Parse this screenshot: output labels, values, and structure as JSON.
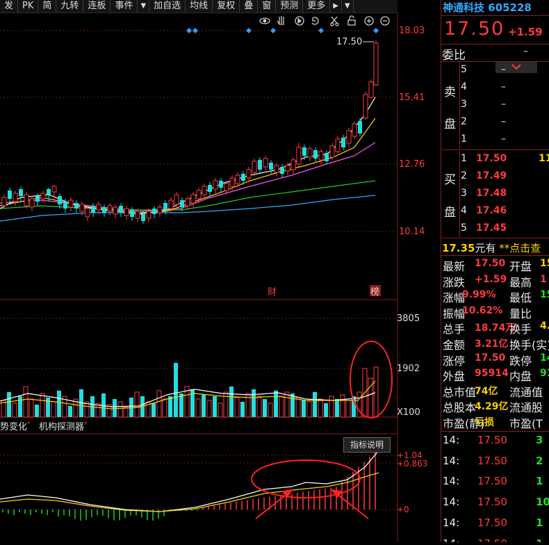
{
  "toolbar": {
    "items": [
      "发",
      "PK",
      "简",
      "九转",
      "连板",
      "事件",
      "▼",
      "加自选",
      "均线",
      "复权",
      "叠",
      "窗",
      "预测",
      "更多",
      "▶",
      "▼"
    ]
  },
  "chart": {
    "price_axis": [
      "18.03",
      "15.41",
      "12.76",
      "10.14"
    ],
    "last_price_label": "17.50",
    "markers": {
      "cai": "财",
      "bang": "榜"
    },
    "volume_axis": [
      "3805",
      "1902",
      "X100"
    ],
    "macd_axis": [
      "+1.04",
      "+0.863",
      "+0"
    ],
    "indicator_button": "指标说明",
    "tabs": [
      {
        "label": "势变化",
        "mark": "*"
      },
      {
        "label": "机构探测器",
        "mark": "*"
      }
    ],
    "colors": {
      "up": "#ff3b3b",
      "down": "#22dddd",
      "ma5": "#ffffff",
      "ma10": "#ffd000",
      "ma20": "#ff55ff",
      "ma30": "#22cc22",
      "ma60": "#33aaff"
    }
  },
  "stock": {
    "name": "神通科技",
    "code": "605228",
    "price": "17.50",
    "change": "+1.59"
  },
  "order_book": {
    "weibi_label": "委比",
    "weibi_value": "–",
    "sell_label": [
      "卖",
      "盘"
    ],
    "buy_label": [
      "买",
      "盘"
    ],
    "sell": [
      {
        "level": "5",
        "price": "–"
      },
      {
        "level": "4",
        "price": "–"
      },
      {
        "level": "3",
        "price": "–"
      },
      {
        "level": "2",
        "price": "–"
      },
      {
        "level": "1",
        "price": "–"
      }
    ],
    "buy": [
      {
        "level": "1",
        "price": "17.50",
        "vol": "11"
      },
      {
        "level": "2",
        "price": "17.49",
        "vol": ""
      },
      {
        "level": "3",
        "price": "17.48",
        "vol": ""
      },
      {
        "level": "4",
        "price": "17.46",
        "vol": ""
      },
      {
        "level": "5",
        "price": "17.45",
        "vol": ""
      }
    ]
  },
  "notice": {
    "value": "17.35",
    "text": "元有",
    "link": "**点击查"
  },
  "stats": [
    {
      "l1": "最新",
      "v1": "17.50",
      "l2": "开盘",
      "v2": "15"
    },
    {
      "l1": "涨跌",
      "v1": "+1.59",
      "l2": "最高",
      "v2": "1"
    },
    {
      "l1": "涨幅",
      "v1": "9.99%",
      "l2": "最低",
      "v2": "15"
    },
    {
      "l1": "振幅",
      "v1": "10.62%",
      "l2": "量比",
      "v2": ""
    },
    {
      "l1": "总手",
      "v1": "18.74万",
      "l2": "换手",
      "v2": "4."
    },
    {
      "l1": "金额",
      "v1": "3.21亿",
      "l2": "换手(实)",
      "v2": ""
    },
    {
      "l1": "涨停",
      "v1": "17.50",
      "l2": "跌停",
      "v2": "14"
    },
    {
      "l1": "外盘",
      "v1": "95914",
      "l2": "内盘",
      "v2": "91"
    },
    {
      "l1": "总市值",
      "v1": "74亿",
      "l2": "流通值",
      "v2": ""
    },
    {
      "l1": "总股本",
      "v1": "4.29亿",
      "l2": "流通股",
      "v2": ""
    },
    {
      "l1": "市盈(静)",
      "v1": "亏损",
      "l2": "市盈(T",
      "v2": ""
    }
  ],
  "trades": [
    {
      "time": "14:",
      "price": "17.50",
      "vol": "3"
    },
    {
      "time": "14:",
      "price": "17.50",
      "vol": "2"
    },
    {
      "time": "14:",
      "price": "17.50",
      "vol": "1"
    },
    {
      "time": "14:",
      "price": "17.50",
      "vol": "10"
    },
    {
      "time": "14:",
      "price": "17.50",
      "vol": "1"
    },
    {
      "time": "14:",
      "price": "17.50",
      "vol": "1"
    }
  ]
}
